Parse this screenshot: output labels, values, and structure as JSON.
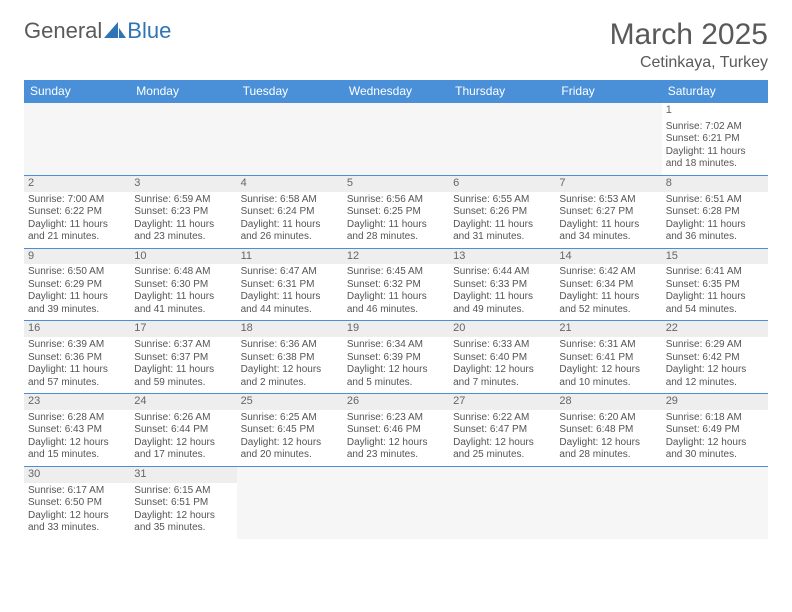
{
  "logo": {
    "text1": "General",
    "text2": "Blue"
  },
  "title": "March 2025",
  "location": "Cetinkaya, Turkey",
  "colors": {
    "header_bg": "#4a90d9",
    "header_text": "#ffffff",
    "border": "#4a90d9",
    "daynum_bg": "#eeeeee",
    "text": "#555555"
  },
  "weekdays": [
    "Sunday",
    "Monday",
    "Tuesday",
    "Wednesday",
    "Thursday",
    "Friday",
    "Saturday"
  ],
  "weeks": [
    [
      null,
      null,
      null,
      null,
      null,
      null,
      {
        "n": "1",
        "sr": "Sunrise: 7:02 AM",
        "ss": "Sunset: 6:21 PM",
        "dl": "Daylight: 11 hours and 18 minutes."
      }
    ],
    [
      {
        "n": "2",
        "sr": "Sunrise: 7:00 AM",
        "ss": "Sunset: 6:22 PM",
        "dl": "Daylight: 11 hours and 21 minutes."
      },
      {
        "n": "3",
        "sr": "Sunrise: 6:59 AM",
        "ss": "Sunset: 6:23 PM",
        "dl": "Daylight: 11 hours and 23 minutes."
      },
      {
        "n": "4",
        "sr": "Sunrise: 6:58 AM",
        "ss": "Sunset: 6:24 PM",
        "dl": "Daylight: 11 hours and 26 minutes."
      },
      {
        "n": "5",
        "sr": "Sunrise: 6:56 AM",
        "ss": "Sunset: 6:25 PM",
        "dl": "Daylight: 11 hours and 28 minutes."
      },
      {
        "n": "6",
        "sr": "Sunrise: 6:55 AM",
        "ss": "Sunset: 6:26 PM",
        "dl": "Daylight: 11 hours and 31 minutes."
      },
      {
        "n": "7",
        "sr": "Sunrise: 6:53 AM",
        "ss": "Sunset: 6:27 PM",
        "dl": "Daylight: 11 hours and 34 minutes."
      },
      {
        "n": "8",
        "sr": "Sunrise: 6:51 AM",
        "ss": "Sunset: 6:28 PM",
        "dl": "Daylight: 11 hours and 36 minutes."
      }
    ],
    [
      {
        "n": "9",
        "sr": "Sunrise: 6:50 AM",
        "ss": "Sunset: 6:29 PM",
        "dl": "Daylight: 11 hours and 39 minutes."
      },
      {
        "n": "10",
        "sr": "Sunrise: 6:48 AM",
        "ss": "Sunset: 6:30 PM",
        "dl": "Daylight: 11 hours and 41 minutes."
      },
      {
        "n": "11",
        "sr": "Sunrise: 6:47 AM",
        "ss": "Sunset: 6:31 PM",
        "dl": "Daylight: 11 hours and 44 minutes."
      },
      {
        "n": "12",
        "sr": "Sunrise: 6:45 AM",
        "ss": "Sunset: 6:32 PM",
        "dl": "Daylight: 11 hours and 46 minutes."
      },
      {
        "n": "13",
        "sr": "Sunrise: 6:44 AM",
        "ss": "Sunset: 6:33 PM",
        "dl": "Daylight: 11 hours and 49 minutes."
      },
      {
        "n": "14",
        "sr": "Sunrise: 6:42 AM",
        "ss": "Sunset: 6:34 PM",
        "dl": "Daylight: 11 hours and 52 minutes."
      },
      {
        "n": "15",
        "sr": "Sunrise: 6:41 AM",
        "ss": "Sunset: 6:35 PM",
        "dl": "Daylight: 11 hours and 54 minutes."
      }
    ],
    [
      {
        "n": "16",
        "sr": "Sunrise: 6:39 AM",
        "ss": "Sunset: 6:36 PM",
        "dl": "Daylight: 11 hours and 57 minutes."
      },
      {
        "n": "17",
        "sr": "Sunrise: 6:37 AM",
        "ss": "Sunset: 6:37 PM",
        "dl": "Daylight: 11 hours and 59 minutes."
      },
      {
        "n": "18",
        "sr": "Sunrise: 6:36 AM",
        "ss": "Sunset: 6:38 PM",
        "dl": "Daylight: 12 hours and 2 minutes."
      },
      {
        "n": "19",
        "sr": "Sunrise: 6:34 AM",
        "ss": "Sunset: 6:39 PM",
        "dl": "Daylight: 12 hours and 5 minutes."
      },
      {
        "n": "20",
        "sr": "Sunrise: 6:33 AM",
        "ss": "Sunset: 6:40 PM",
        "dl": "Daylight: 12 hours and 7 minutes."
      },
      {
        "n": "21",
        "sr": "Sunrise: 6:31 AM",
        "ss": "Sunset: 6:41 PM",
        "dl": "Daylight: 12 hours and 10 minutes."
      },
      {
        "n": "22",
        "sr": "Sunrise: 6:29 AM",
        "ss": "Sunset: 6:42 PM",
        "dl": "Daylight: 12 hours and 12 minutes."
      }
    ],
    [
      {
        "n": "23",
        "sr": "Sunrise: 6:28 AM",
        "ss": "Sunset: 6:43 PM",
        "dl": "Daylight: 12 hours and 15 minutes."
      },
      {
        "n": "24",
        "sr": "Sunrise: 6:26 AM",
        "ss": "Sunset: 6:44 PM",
        "dl": "Daylight: 12 hours and 17 minutes."
      },
      {
        "n": "25",
        "sr": "Sunrise: 6:25 AM",
        "ss": "Sunset: 6:45 PM",
        "dl": "Daylight: 12 hours and 20 minutes."
      },
      {
        "n": "26",
        "sr": "Sunrise: 6:23 AM",
        "ss": "Sunset: 6:46 PM",
        "dl": "Daylight: 12 hours and 23 minutes."
      },
      {
        "n": "27",
        "sr": "Sunrise: 6:22 AM",
        "ss": "Sunset: 6:47 PM",
        "dl": "Daylight: 12 hours and 25 minutes."
      },
      {
        "n": "28",
        "sr": "Sunrise: 6:20 AM",
        "ss": "Sunset: 6:48 PM",
        "dl": "Daylight: 12 hours and 28 minutes."
      },
      {
        "n": "29",
        "sr": "Sunrise: 6:18 AM",
        "ss": "Sunset: 6:49 PM",
        "dl": "Daylight: 12 hours and 30 minutes."
      }
    ],
    [
      {
        "n": "30",
        "sr": "Sunrise: 6:17 AM",
        "ss": "Sunset: 6:50 PM",
        "dl": "Daylight: 12 hours and 33 minutes."
      },
      {
        "n": "31",
        "sr": "Sunrise: 6:15 AM",
        "ss": "Sunset: 6:51 PM",
        "dl": "Daylight: 12 hours and 35 minutes."
      },
      null,
      null,
      null,
      null,
      null
    ]
  ]
}
